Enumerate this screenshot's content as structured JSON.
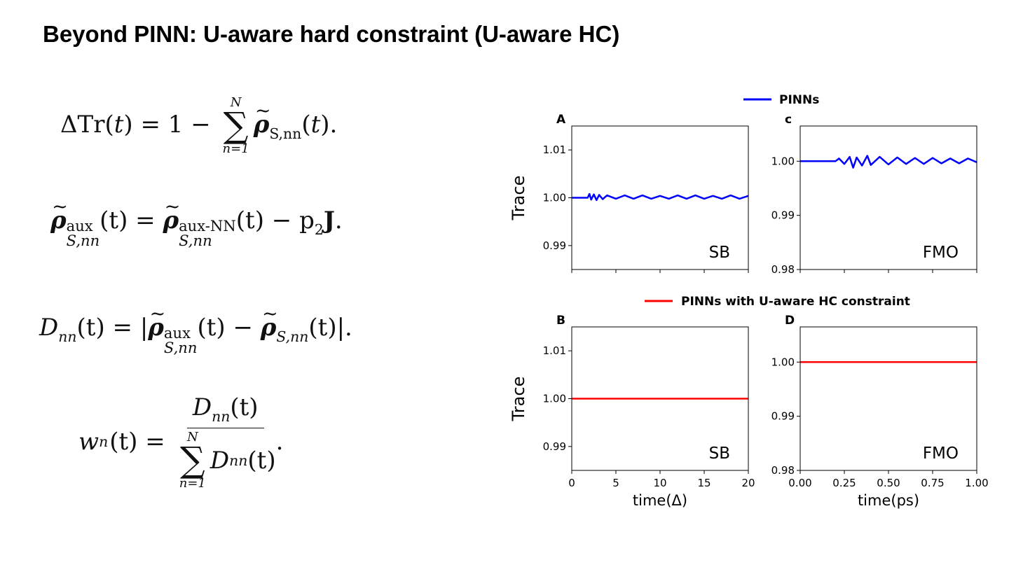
{
  "slide": {
    "title": "Beyond PINN: U-aware hard constraint (U-aware HC)"
  },
  "equations": {
    "eq1": {
      "lhs": "ΔTr",
      "t": "t",
      "eq": "= 1 −",
      "sum_upper": "N",
      "sum_lower": "n=1",
      "rho": "ρ",
      "rho_sub": "S,nn",
      "end": "."
    },
    "eq2": {
      "rho": "ρ",
      "sup1": "aux",
      "sub1": "S,nn",
      "sup2": "aux-NN",
      "sub2": "S,nn",
      "middle": "(t) =",
      "tail": "(t) − p",
      "p_sub": "2",
      "J": "J",
      "end": "."
    },
    "eq3": {
      "D": "D",
      "D_sub": "nn",
      "text1": "(t) = |",
      "sup": "aux",
      "sub": "S,nn",
      "text2": "(t) −",
      "sub2": "S,nn",
      "text3": "(t)|."
    },
    "eq4": {
      "w": "w",
      "w_sub": "n",
      "text1": "(t) =",
      "num_D": "D",
      "num_sub": "nn",
      "num_t": "(t)",
      "sum_upper": "N",
      "sum_lower": "n=1",
      "den_D": "D",
      "den_sub": "nn",
      "den_t": "(t)",
      "end": "."
    }
  },
  "chart_data": [
    {
      "panel_label": "A",
      "type": "line",
      "annotation": "SB",
      "ylabel": "Trace",
      "xlim": [
        0,
        20
      ],
      "ylim": [
        0.985,
        1.015
      ],
      "yticks": [
        0.99,
        1.0,
        1.01
      ],
      "ytick_labels": [
        "0.99",
        "1.00",
        "1.01"
      ],
      "xticks": [
        0,
        5,
        10,
        15,
        20
      ],
      "show_xtick_labels": false,
      "series": [
        {
          "name": "PINNs",
          "color": "#0000ff",
          "x": [
            0,
            1.8,
            2.0,
            2.2,
            2.5,
            2.8,
            3.1,
            3.5,
            4,
            5,
            6,
            7,
            8,
            9,
            10,
            11,
            12,
            13,
            14,
            15,
            16,
            17,
            18,
            19,
            20
          ],
          "y": [
            1.0,
            1.0,
            1.0008,
            0.9996,
            1.0007,
            0.9995,
            1.0006,
            0.9997,
            1.0005,
            0.9998,
            1.0005,
            0.9998,
            1.0005,
            0.9998,
            1.0004,
            0.9998,
            1.0005,
            0.9998,
            1.0005,
            0.9998,
            1.0004,
            0.9998,
            1.0005,
            0.9998,
            1.0004
          ]
        }
      ]
    },
    {
      "panel_label": "c",
      "type": "line",
      "annotation": "FMO",
      "xlim": [
        0,
        1
      ],
      "ylim": [
        0.98,
        1.0065
      ],
      "yticks": [
        0.98,
        0.99,
        1.0
      ],
      "ytick_labels": [
        "0.98",
        "0.99",
        "1.00"
      ],
      "xticks": [
        0,
        0.25,
        0.5,
        0.75,
        1.0
      ],
      "show_xtick_labels": false,
      "series": [
        {
          "name": "PINNs",
          "color": "#0000ff",
          "x": [
            0,
            0.2,
            0.22,
            0.25,
            0.28,
            0.3,
            0.32,
            0.35,
            0.38,
            0.4,
            0.45,
            0.5,
            0.55,
            0.6,
            0.65,
            0.7,
            0.75,
            0.8,
            0.85,
            0.9,
            0.95,
            1.0
          ],
          "y": [
            1.0,
            1.0,
            1.0005,
            0.9995,
            1.0008,
            0.9988,
            1.0007,
            0.9992,
            1.001,
            0.9993,
            1.0008,
            0.9994,
            1.0007,
            0.9995,
            1.0006,
            0.9995,
            1.0006,
            0.9996,
            1.0005,
            0.9996,
            1.0005,
            0.9998
          ]
        }
      ]
    },
    {
      "panel_label": "B",
      "type": "line",
      "annotation": "SB",
      "ylabel": "Trace",
      "xlabel": "time(Δ)",
      "xlim": [
        0,
        20
      ],
      "ylim": [
        0.985,
        1.015
      ],
      "yticks": [
        0.99,
        1.0,
        1.01
      ],
      "ytick_labels": [
        "0.99",
        "1.00",
        "1.01"
      ],
      "xticks": [
        0,
        5,
        10,
        15,
        20
      ],
      "xtick_labels": [
        "0",
        "5",
        "10",
        "15",
        "20"
      ],
      "show_xtick_labels": true,
      "series": [
        {
          "name": "PINNs with U-aware HC constraint",
          "color": "#ff0000",
          "x": [
            0,
            20
          ],
          "y": [
            1.0,
            1.0
          ]
        }
      ]
    },
    {
      "panel_label": "D",
      "type": "line",
      "annotation": "FMO",
      "xlabel": "time(ps)",
      "xlim": [
        0,
        1
      ],
      "ylim": [
        0.98,
        1.0065
      ],
      "yticks": [
        0.98,
        0.99,
        1.0
      ],
      "ytick_labels": [
        "0.98",
        "0.99",
        "1.00"
      ],
      "xticks": [
        0,
        0.25,
        0.5,
        0.75,
        1.0
      ],
      "xtick_labels": [
        "0.00",
        "0.25",
        "0.50",
        "0.75",
        "1.00"
      ],
      "show_xtick_labels": true,
      "series": [
        {
          "name": "PINNs with U-aware HC constraint",
          "color": "#ff0000",
          "x": [
            0,
            1
          ],
          "y": [
            1.0,
            1.0
          ]
        }
      ]
    }
  ],
  "legends": {
    "top": {
      "label": "PINNs",
      "color": "#0000ff"
    },
    "bottom": {
      "label": "PINNs with U-aware HC constraint",
      "color": "#ff0000"
    }
  }
}
